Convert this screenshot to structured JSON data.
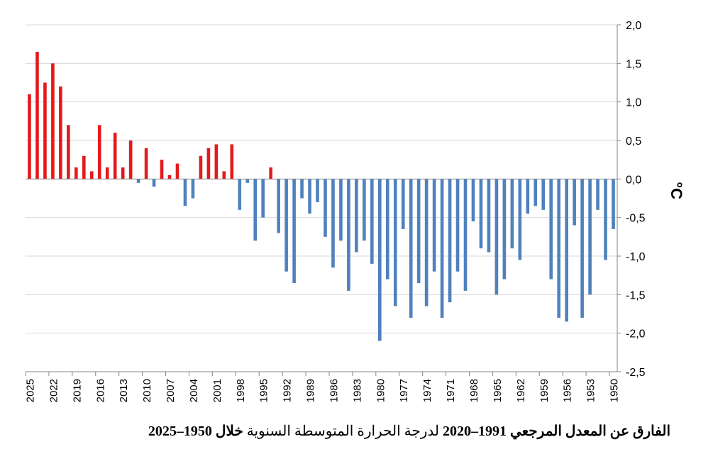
{
  "caption": {
    "part1": "الفارق عن المعدل المرجعي",
    "part2": "1991–2020",
    "part3": "لدرجة الحرارة المتوسطة السنوية",
    "part4": "خلال 1950–2025"
  },
  "chart_data": {
    "type": "bar",
    "title": "",
    "xlabel": "",
    "ylabel": "°C",
    "ylim": [
      -2.5,
      2.0
    ],
    "yticks": [
      2.0,
      1.5,
      1.0,
      0.5,
      0.0,
      -0.5,
      -1.0,
      -1.5,
      -2.0,
      -2.5
    ],
    "ytick_labels": [
      "2,0",
      "1,5",
      "1,0",
      "0,5",
      "0,0",
      "-0,5",
      "-1,0",
      "-1,5",
      "-2,0",
      "-2,5"
    ],
    "x_tick_labels": [
      "2025",
      "2022",
      "2019",
      "2016",
      "2013",
      "2010",
      "2007",
      "2004",
      "2001",
      "1998",
      "1995",
      "1992",
      "1989",
      "1986",
      "1983",
      "1980",
      "1977",
      "1974",
      "1971",
      "1968",
      "1965",
      "1962",
      "1959",
      "1956",
      "1953",
      "1950"
    ],
    "x_order": "descending years, left to right",
    "grid": "horizontal",
    "y_axis_side": "right",
    "colors": {
      "positive": "#e31a1c",
      "negative": "#4f81bd",
      "grid": "#d9d9d9",
      "axis": "#868686"
    },
    "categories": [
      2025,
      2024,
      2023,
      2022,
      2021,
      2020,
      2019,
      2018,
      2017,
      2016,
      2015,
      2014,
      2013,
      2012,
      2011,
      2010,
      2009,
      2008,
      2007,
      2006,
      2005,
      2004,
      2003,
      2002,
      2001,
      2000,
      1999,
      1998,
      1997,
      1996,
      1995,
      1994,
      1993,
      1992,
      1991,
      1990,
      1989,
      1988,
      1987,
      1986,
      1985,
      1984,
      1983,
      1982,
      1981,
      1980,
      1979,
      1978,
      1977,
      1976,
      1975,
      1974,
      1973,
      1972,
      1971,
      1970,
      1969,
      1968,
      1967,
      1966,
      1965,
      1964,
      1963,
      1962,
      1961,
      1960,
      1959,
      1958,
      1957,
      1956,
      1955,
      1954,
      1953,
      1952,
      1951,
      1950
    ],
    "values": [
      1.1,
      1.65,
      1.25,
      1.5,
      1.2,
      0.7,
      0.15,
      0.3,
      0.1,
      0.7,
      0.15,
      0.6,
      0.15,
      0.5,
      -0.05,
      0.4,
      -0.1,
      0.25,
      0.05,
      0.2,
      -0.35,
      -0.25,
      0.3,
      0.4,
      0.45,
      0.1,
      0.45,
      -0.4,
      -0.05,
      -0.8,
      -0.5,
      0.15,
      -0.7,
      -1.2,
      -1.35,
      -0.25,
      -0.45,
      -0.3,
      -0.75,
      -1.15,
      -0.8,
      -1.45,
      -0.95,
      -0.8,
      -1.1,
      -2.1,
      -1.3,
      -1.65,
      -0.65,
      -1.8,
      -1.35,
      -1.65,
      -1.2,
      -1.8,
      -1.6,
      -1.2,
      -1.45,
      -0.55,
      -0.9,
      -0.95,
      -1.5,
      -1.3,
      -0.9,
      -1.05,
      -0.45,
      -0.35,
      -0.4,
      -1.3,
      -1.8,
      -1.85,
      -0.6,
      -1.8,
      -1.5,
      -0.4,
      -1.05,
      -0.65
    ]
  }
}
